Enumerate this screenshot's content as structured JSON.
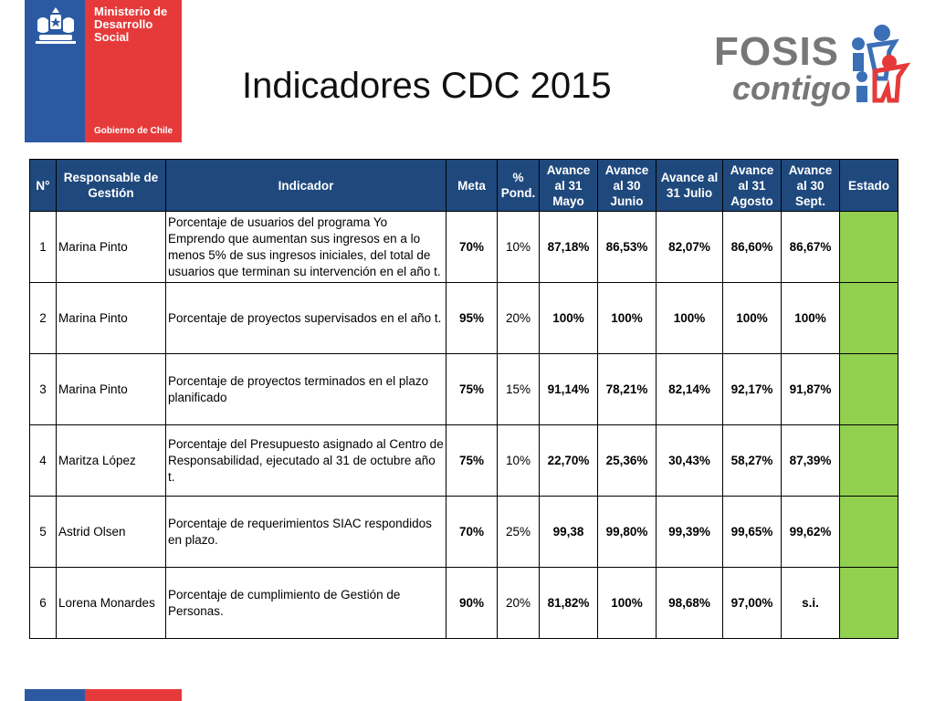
{
  "header": {
    "ministry_lines": [
      "Ministerio de",
      "Desarrollo",
      "Social"
    ],
    "government": "Gobierno de Chile",
    "title": "Indicadores CDC 2015",
    "fosis_word": "FOSIS",
    "fosis_tagline": "contigo"
  },
  "colors": {
    "header_bg": "#1f497d",
    "estado_green": "#92d050",
    "gov_blue": "#2b5aa3",
    "gov_red": "#e63a3a"
  },
  "table": {
    "headers": [
      "N°",
      "Responsable de Gestión",
      "Indicador",
      "Meta",
      "% Pond.",
      "Avance al 31 Mayo",
      "Avance al 30 Junio",
      "Avance al 31 Julio",
      "Avance al 31 Agosto",
      "Avance al 30 Sept.",
      "Estado"
    ],
    "rows": [
      {
        "n": "1",
        "responsable": "Marina Pinto",
        "indicador": " Porcentaje de usuarios del programa Yo Emprendo que aumentan sus ingresos en a lo menos 5% de sus ingresos iniciales, del total de usuarios que terminan su intervención en el año t.",
        "meta": "70%",
        "pond": "10%",
        "mayo": "87,18%",
        "junio": "86,53%",
        "julio": "82,07%",
        "agosto": "86,60%",
        "sept": "86,67%",
        "estado": ""
      },
      {
        "n": "2",
        "responsable": "Marina Pinto",
        "indicador": " Porcentaje de  proyectos supervisados en el año t.",
        "meta": "95%",
        "pond": "20%",
        "mayo": "100%",
        "junio": "100%",
        "julio": "100%",
        "agosto": "100%",
        "sept": "100%",
        "estado": ""
      },
      {
        "n": "3",
        "responsable": "Marina Pinto",
        "indicador": " Porcentaje de proyectos terminados en el plazo planificado",
        "meta": "75%",
        "pond": "15%",
        "mayo": "91,14%",
        "junio": "78,21%",
        "julio": "82,14%",
        "agosto": "92,17%",
        "sept": "91,87%",
        "estado": ""
      },
      {
        "n": "4",
        "responsable": "Maritza López",
        "indicador": " Porcentaje del Presupuesto asignado al  Centro de   Responsabilidad, ejecutado al 31 de octubre año t.",
        "meta": "75%",
        "pond": "10%",
        "mayo": "22,70%",
        "junio": "25,36%",
        "julio": "30,43%",
        "agosto": "58,27%",
        "sept": "87,39%",
        "estado": ""
      },
      {
        "n": "5",
        "responsable": "Astrid Olsen",
        "indicador": " Porcentaje de requerimientos SIAC respondidos en plazo.",
        "meta": "70%",
        "pond": "25%",
        "mayo": "99,38",
        "junio": "99,80%",
        "julio": "99,39%",
        "agosto": "99,65%",
        "sept": "99,62%",
        "estado": ""
      },
      {
        "n": "6",
        "responsable": "Lorena Monardes",
        "indicador": " Porcentaje de cumplimiento de Gestión de Personas.",
        "meta": "90%",
        "pond": "20%",
        "mayo": "81,82%",
        "junio": "100%",
        "julio": "98,68%",
        "agosto": "97,00%",
        "sept": "s.i.",
        "estado": ""
      }
    ]
  }
}
